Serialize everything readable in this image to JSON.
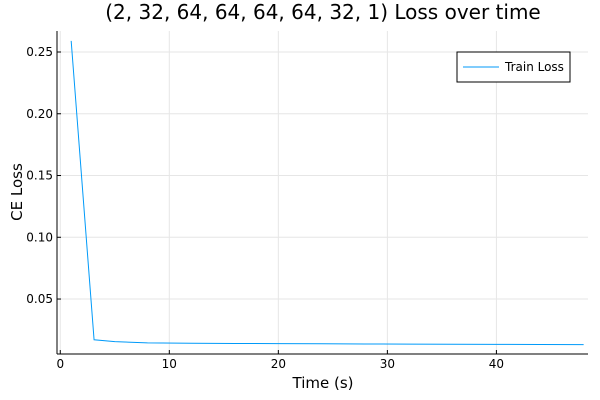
{
  "chart_data": {
    "type": "line",
    "title": "(2, 32, 64, 64, 64, 64, 32, 1) Loss over time",
    "xlabel": "Time (s)",
    "ylabel": "CE Loss",
    "xlim": [
      -0.3,
      48.4
    ],
    "ylim": [
      0.0055,
      0.267
    ],
    "xticks": [
      0,
      10,
      20,
      30,
      40
    ],
    "xtick_labels": [
      "0",
      "10",
      "20",
      "30",
      "40"
    ],
    "yticks": [
      0.05,
      0.1,
      0.15,
      0.2,
      0.25
    ],
    "ytick_labels": [
      "0.05",
      "0.10",
      "0.15",
      "0.20",
      "0.25"
    ],
    "grid": true,
    "legend_position": "top-right",
    "series": [
      {
        "name": "Train Loss",
        "color": "#009af9",
        "x": [
          1,
          3.1,
          5,
          8,
          12,
          16,
          20,
          24,
          28,
          32,
          36,
          40,
          44,
          48
        ],
        "y": [
          0.259,
          0.017,
          0.0155,
          0.0145,
          0.0142,
          0.014,
          0.0139,
          0.0138,
          0.0136,
          0.0135,
          0.0134,
          0.0133,
          0.0132,
          0.0131
        ]
      }
    ]
  }
}
